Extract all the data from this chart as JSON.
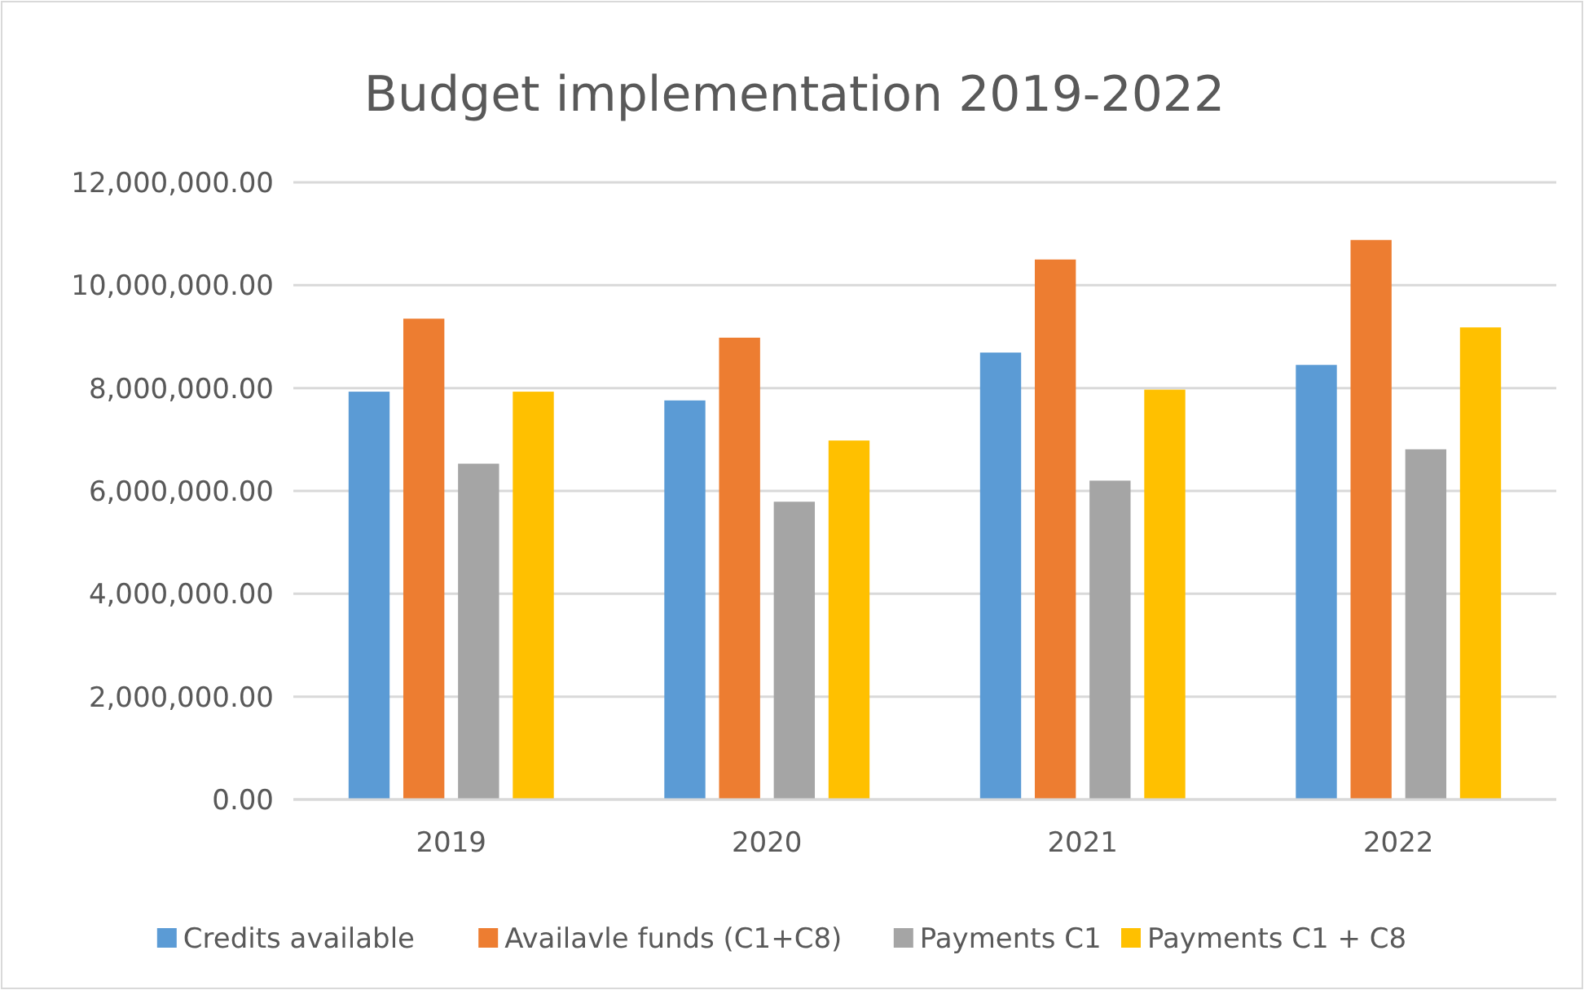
{
  "chart_data": {
    "type": "bar",
    "title": "Budget implementation 2019-2022",
    "categories": [
      "2019",
      "2020",
      "2021",
      "2022"
    ],
    "series": [
      {
        "name": "Credits available",
        "color": "#5b9bd5",
        "values": [
          7930000,
          7760000,
          8690000,
          8450000
        ]
      },
      {
        "name": "Availavle funds (C1+C8)",
        "color": "#ed7d31",
        "values": [
          9350000,
          8980000,
          10500000,
          10880000
        ]
      },
      {
        "name": "Payments C1",
        "color": "#a5a5a5",
        "values": [
          6530000,
          5790000,
          6200000,
          6810000
        ]
      },
      {
        "name": "Payments C1 + C8",
        "color": "#ffc000",
        "values": [
          7930000,
          6980000,
          7970000,
          9180000
        ]
      }
    ],
    "ylim": [
      0,
      12000000
    ],
    "yticks": [
      {
        "value": 0,
        "label": "0.00"
      },
      {
        "value": 2000000,
        "label": "2,000,000.00"
      },
      {
        "value": 4000000,
        "label": "4,000,000.00"
      },
      {
        "value": 6000000,
        "label": "6,000,000.00"
      },
      {
        "value": 8000000,
        "label": "8,000,000.00"
      },
      {
        "value": 10000000,
        "label": "10,000,000.00"
      },
      {
        "value": 12000000,
        "label": "12,000,000.00"
      }
    ],
    "grid": "y",
    "legend": "bottom"
  }
}
